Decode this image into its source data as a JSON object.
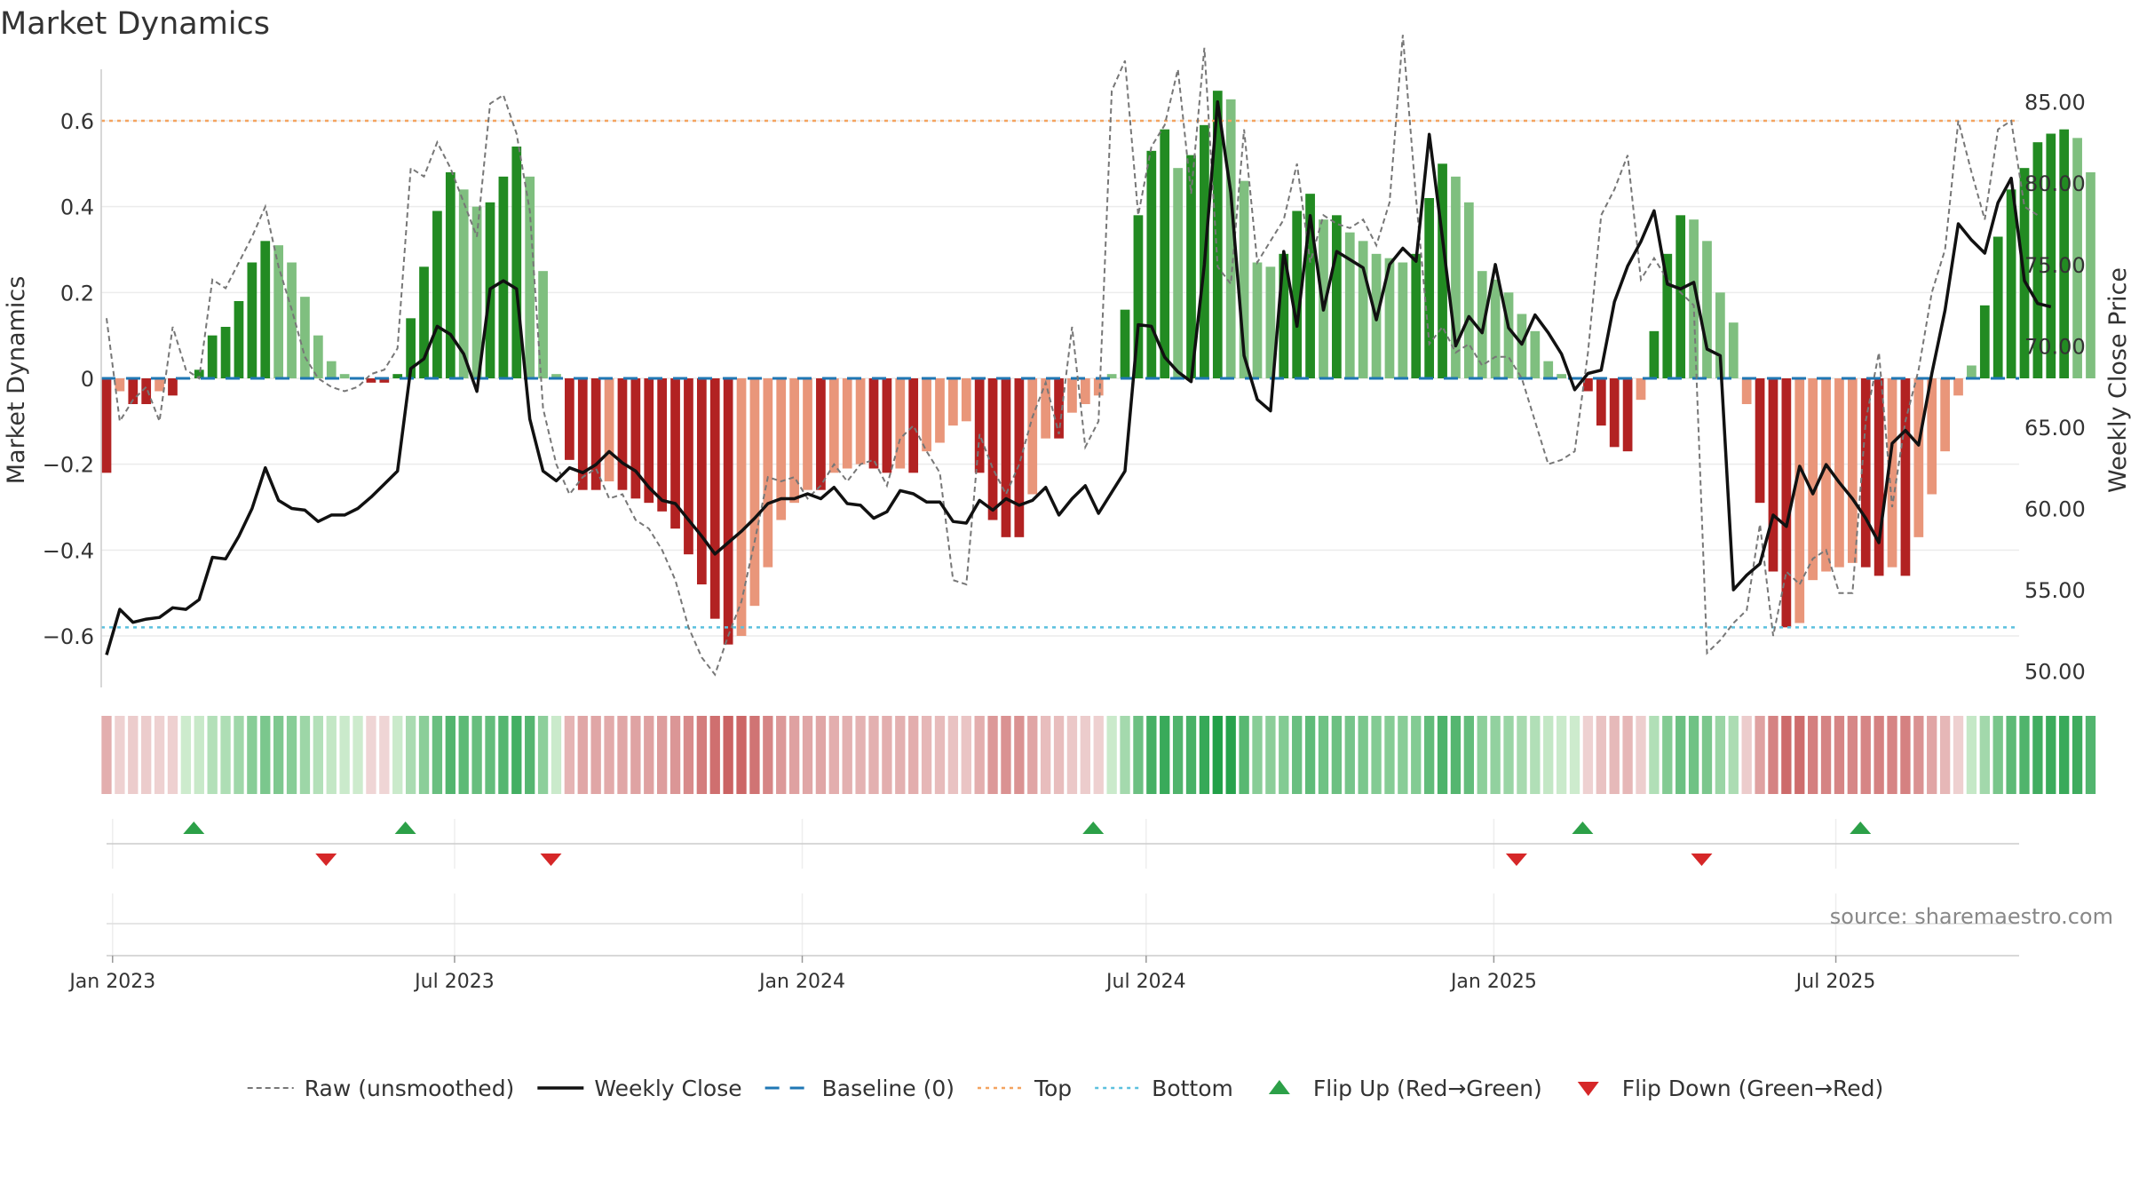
{
  "chart_data": {
    "type": "bar",
    "title": "Market Dynamics",
    "ylabel": "Market Dynamics",
    "y2label": "Weekly Close Price",
    "ylim": [
      -0.72,
      0.72
    ],
    "y2lim": [
      49.0,
      87.0
    ],
    "yticks": [
      -0.6,
      -0.4,
      -0.2,
      0,
      0.2,
      0.4,
      0.6
    ],
    "ytick_labels": [
      "−0.6",
      "−0.4",
      "−0.2",
      "0",
      "0.2",
      "0.4",
      "0.6"
    ],
    "y2ticks": [
      50,
      55,
      60,
      65,
      70,
      75,
      80,
      85
    ],
    "y2tick_labels": [
      "50.00",
      "55.00",
      "60.00",
      "65.00",
      "70.00",
      "75.00",
      "80.00",
      "85.00"
    ],
    "x_start": "2022-12-26",
    "x_end": "2025-10-06",
    "xticks": [
      {
        "date": "2023-01-01",
        "label": "Jan 2023"
      },
      {
        "date": "2023-07-01",
        "label": "Jul 2023"
      },
      {
        "date": "2024-01-01",
        "label": "Jan 2024"
      },
      {
        "date": "2024-07-01",
        "label": "Jul 2024"
      },
      {
        "date": "2025-01-01",
        "label": "Jan 2025"
      },
      {
        "date": "2025-07-01",
        "label": "Jul 2025"
      }
    ],
    "top_level": 0.6,
    "bottom_level": -0.58,
    "baseline": 0,
    "first_week": "2022-12-26",
    "week_dates_note_ignored": "",
    "bars": [
      -0.22,
      -0.03,
      -0.06,
      -0.06,
      -0.03,
      -0.04,
      0.0,
      0.02,
      0.1,
      0.12,
      0.18,
      0.27,
      0.32,
      0.31,
      0.27,
      0.19,
      0.1,
      0.04,
      0.01,
      0.0,
      -0.01,
      -0.01,
      0.01,
      0.14,
      0.26,
      0.39,
      0.48,
      0.44,
      0.4,
      0.41,
      0.47,
      0.54,
      0.47,
      0.25,
      0.01,
      -0.19,
      -0.26,
      -0.26,
      -0.24,
      -0.26,
      -0.28,
      -0.29,
      -0.31,
      -0.35,
      -0.41,
      -0.48,
      -0.56,
      -0.62,
      -0.6,
      -0.53,
      -0.44,
      -0.33,
      -0.29,
      -0.26,
      -0.26,
      -0.22,
      -0.21,
      -0.2,
      -0.21,
      -0.22,
      -0.21,
      -0.22,
      -0.17,
      -0.15,
      -0.11,
      -0.1,
      -0.22,
      -0.33,
      -0.37,
      -0.37,
      -0.27,
      -0.14,
      -0.14,
      -0.08,
      -0.06,
      -0.04,
      0.01,
      0.16,
      0.38,
      0.53,
      0.58,
      0.49,
      0.52,
      0.59,
      0.67,
      0.65,
      0.46,
      0.27,
      0.26,
      0.29,
      0.39,
      0.43,
      0.37,
      0.38,
      0.34,
      0.32,
      0.29,
      0.28,
      0.27,
      0.29,
      0.42,
      0.5,
      0.47,
      0.41,
      0.25,
      0.23,
      0.2,
      0.15,
      0.11,
      0.04,
      0.01,
      0.0,
      -0.03,
      -0.11,
      -0.16,
      -0.17,
      -0.05,
      0.11,
      0.29,
      0.38,
      0.37,
      0.32,
      0.2,
      0.13,
      -0.06,
      -0.29,
      -0.45,
      -0.58,
      -0.57,
      -0.47,
      -0.45,
      -0.44,
      -0.43,
      -0.44,
      -0.46,
      -0.44,
      -0.46,
      -0.37,
      -0.27,
      -0.17,
      -0.04,
      0.03,
      0.17,
      0.33,
      0.44,
      0.49,
      0.55,
      0.57,
      0.58,
      0.56,
      0.48
    ],
    "raw": [
      0.14,
      -0.1,
      -0.05,
      -0.02,
      -0.1,
      0.12,
      0.02,
      0.0,
      0.23,
      0.21,
      0.27,
      0.33,
      0.4,
      0.26,
      0.16,
      0.05,
      0.0,
      -0.02,
      -0.03,
      -0.02,
      0.01,
      0.02,
      0.07,
      0.49,
      0.47,
      0.55,
      0.49,
      0.41,
      0.33,
      0.64,
      0.66,
      0.57,
      0.39,
      -0.07,
      -0.2,
      -0.27,
      -0.23,
      -0.21,
      -0.28,
      -0.27,
      -0.33,
      -0.35,
      -0.4,
      -0.47,
      -0.58,
      -0.65,
      -0.69,
      -0.6,
      -0.52,
      -0.38,
      -0.23,
      -0.24,
      -0.23,
      -0.28,
      -0.25,
      -0.2,
      -0.24,
      -0.2,
      -0.19,
      -0.25,
      -0.14,
      -0.11,
      -0.17,
      -0.22,
      -0.47,
      -0.48,
      -0.13,
      -0.21,
      -0.27,
      -0.2,
      -0.09,
      -0.01,
      -0.13,
      0.12,
      -0.16,
      -0.1,
      0.67,
      0.74,
      0.38,
      0.54,
      0.59,
      0.72,
      0.43,
      0.77,
      0.26,
      0.22,
      0.58,
      0.27,
      0.32,
      0.37,
      0.5,
      0.27,
      0.38,
      0.36,
      0.35,
      0.37,
      0.31,
      0.41,
      0.8,
      0.42,
      0.08,
      0.12,
      0.06,
      0.08,
      0.03,
      0.05,
      0.05,
      0.0,
      -0.1,
      -0.2,
      -0.19,
      -0.17,
      0.06,
      0.38,
      0.44,
      0.52,
      0.23,
      0.28,
      0.23,
      0.2,
      0.17,
      -0.64,
      -0.61,
      -0.57,
      -0.54,
      -0.34,
      -0.6,
      -0.45,
      -0.48,
      -0.42,
      -0.4,
      -0.5,
      -0.5,
      -0.1,
      0.06,
      -0.3,
      -0.1,
      0.02,
      0.2,
      0.3,
      0.6,
      0.48,
      0.37,
      0.58,
      0.6,
      0.4,
      0.38
    ],
    "close": [
      51.0,
      53.8,
      53.0,
      53.2,
      53.3,
      53.9,
      53.8,
      54.4,
      57.0,
      56.9,
      58.3,
      60.0,
      62.5,
      60.5,
      60.0,
      59.9,
      59.2,
      59.6,
      59.6,
      60.0,
      60.7,
      61.5,
      62.3,
      68.6,
      69.2,
      71.2,
      70.7,
      69.5,
      67.2,
      73.5,
      74.0,
      73.5,
      65.5,
      62.3,
      61.7,
      62.5,
      62.2,
      62.7,
      63.5,
      62.8,
      62.3,
      61.3,
      60.5,
      60.3,
      59.3,
      58.3,
      57.2,
      57.9,
      58.6,
      59.4,
      60.3,
      60.6,
      60.6,
      60.9,
      60.6,
      61.3,
      60.3,
      60.2,
      59.4,
      59.8,
      61.1,
      60.9,
      60.4,
      60.4,
      59.2,
      59.1,
      60.5,
      59.9,
      60.6,
      60.2,
      60.5,
      61.3,
      59.6,
      60.6,
      61.4,
      59.7,
      61.0,
      62.3,
      71.3,
      71.2,
      69.3,
      68.4,
      67.8,
      75.0,
      85.0,
      79.4,
      69.4,
      66.7,
      66.0,
      75.8,
      71.2,
      78.0,
      72.2,
      75.8,
      75.3,
      74.8,
      71.6,
      75.0,
      76.0,
      75.2,
      83.0,
      76.6,
      70.0,
      71.8,
      70.8,
      75.0,
      71.1,
      70.1,
      71.9,
      70.8,
      69.5,
      67.3,
      68.3,
      68.5,
      72.7,
      74.9,
      76.4,
      78.3,
      73.8,
      73.5,
      73.9,
      69.8,
      69.4,
      55.0,
      55.9,
      56.6,
      59.6,
      58.9,
      62.6,
      60.9,
      62.7,
      61.6,
      60.6,
      59.4,
      57.9,
      64.0,
      64.8,
      63.9,
      68.3,
      72.2,
      77.5,
      76.5,
      75.7,
      78.8,
      80.3,
      74.0,
      72.6,
      72.4
    ],
    "flip_up_dates": [
      "2023-02-13",
      "2023-06-05",
      "2024-06-03",
      "2025-02-17",
      "2025-07-14"
    ],
    "flip_down_dates": [
      "2023-04-24",
      "2023-08-21",
      "2025-01-13",
      "2025-04-21"
    ],
    "source": "source: sharemaestro.com",
    "legend_position": "bottom",
    "legend": [
      {
        "label": "Raw (unsmoothed)",
        "style": "raw"
      },
      {
        "label": "Weekly Close",
        "style": "close"
      },
      {
        "label": "Baseline (0)",
        "style": "baseline"
      },
      {
        "label": "Top",
        "style": "top"
      },
      {
        "label": "Bottom",
        "style": "bottom"
      },
      {
        "label": "Flip Up (Red→Green)",
        "style": "flipup"
      },
      {
        "label": "Flip Down (Green→Red)",
        "style": "flipdown"
      }
    ],
    "colors": {
      "pos_strong": "#228b22",
      "pos_weak": "#7fbf7f",
      "neg_strong": "#b22222",
      "neg_weak": "#e9967a",
      "close": "#111111",
      "raw": "#777777",
      "baseline": "#1f77b4",
      "top": "#f4a460",
      "bottom": "#5bc0de",
      "flip_up": "#2ca048",
      "flip_down": "#d62728",
      "text": "#333333"
    }
  }
}
